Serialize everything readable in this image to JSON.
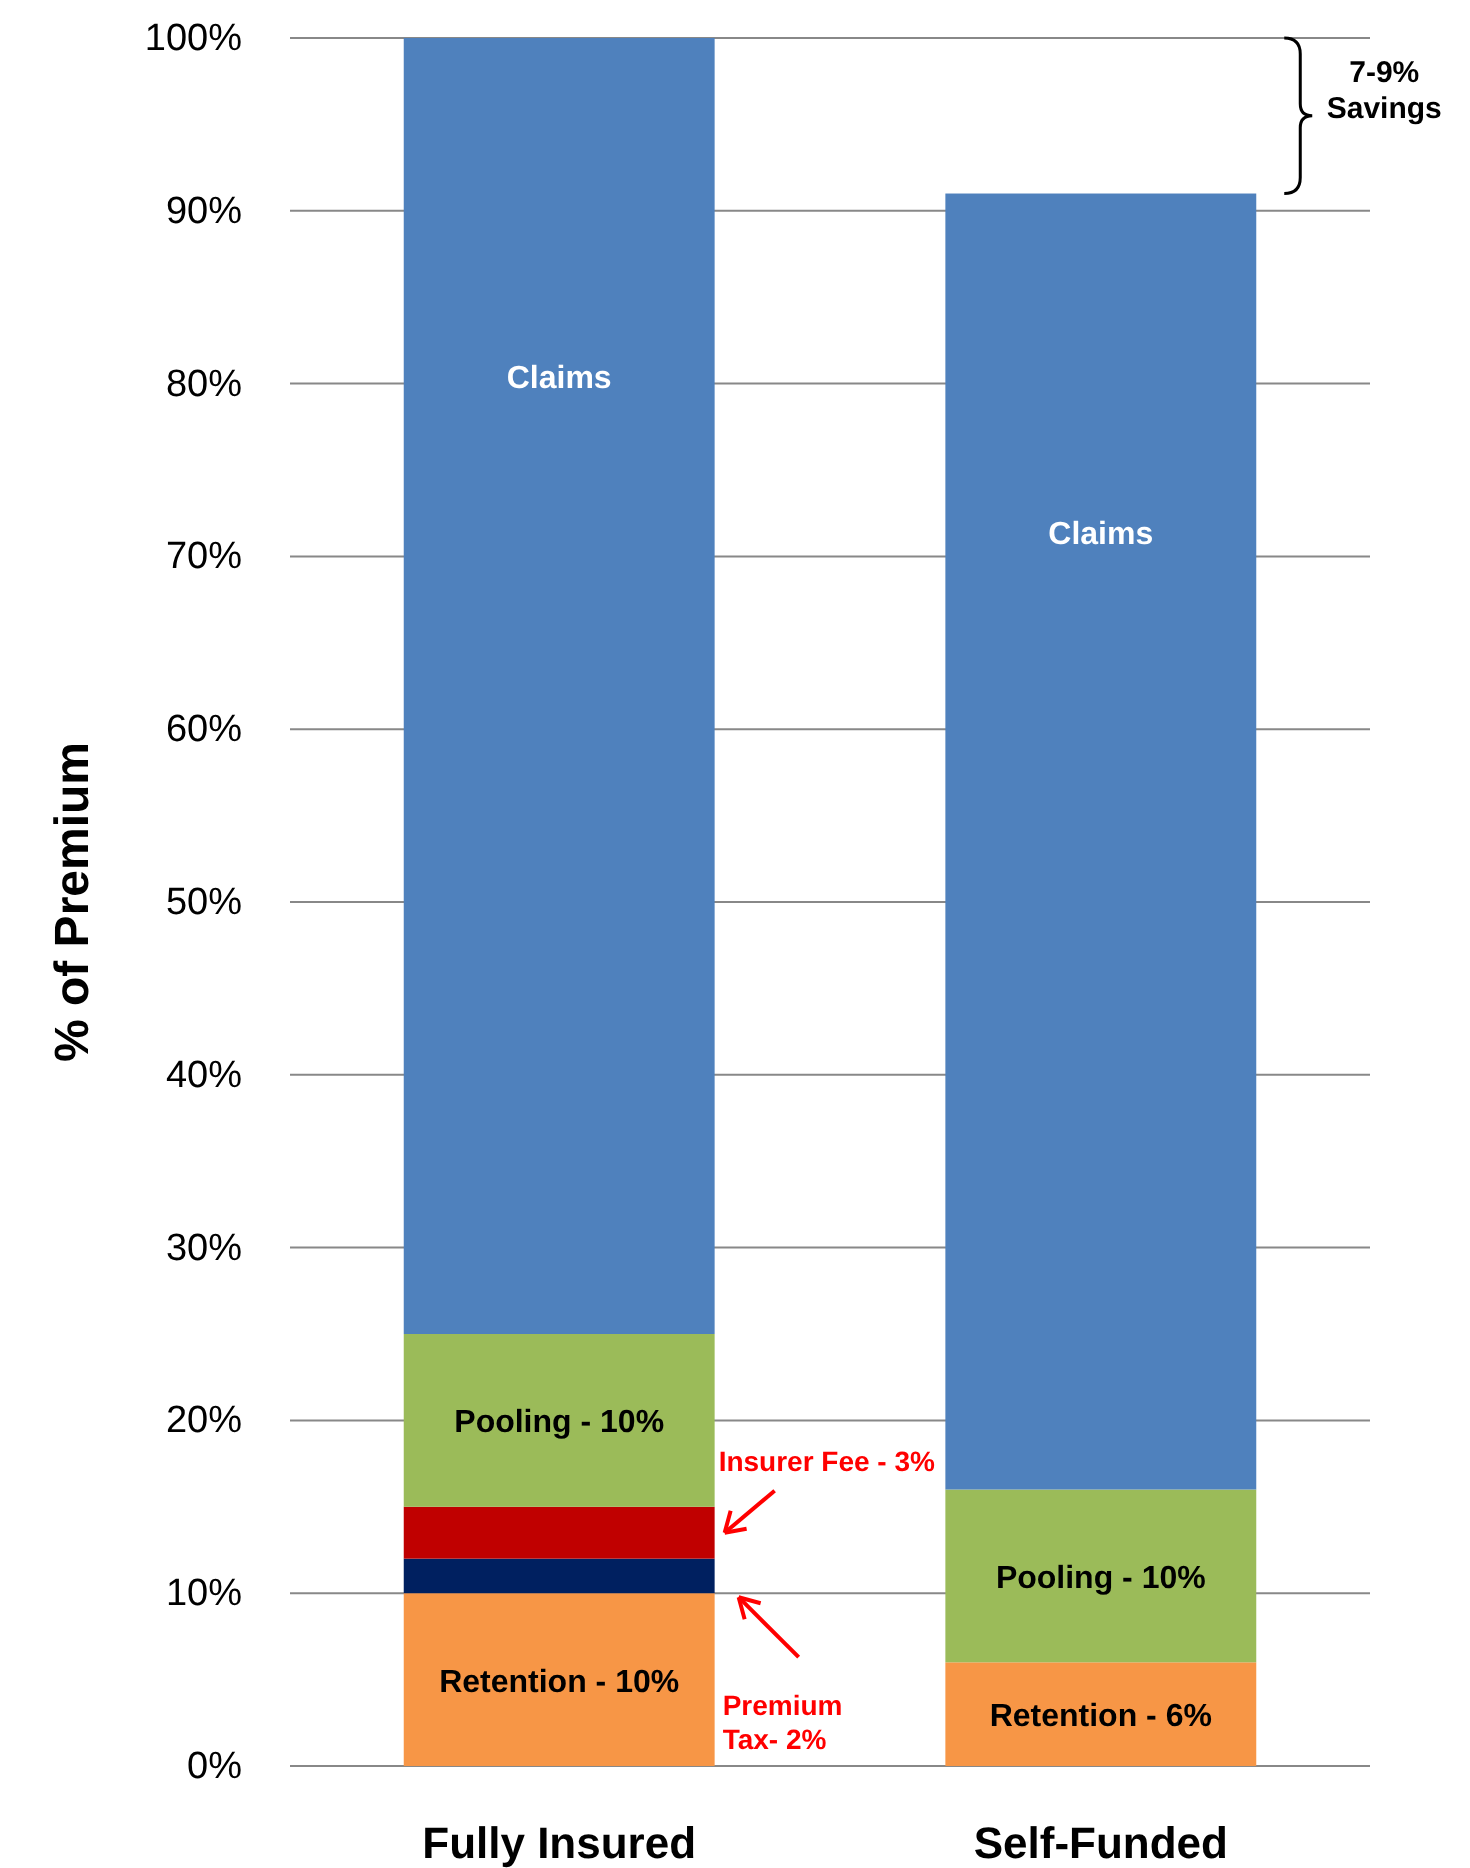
{
  "chart_data": {
    "type": "bar",
    "stacked": true,
    "ylabel": "% of Premium",
    "categories": [
      "Fully Insured",
      "Self-Funded"
    ],
    "series": [
      {
        "color": "#f79646",
        "values": [
          10,
          6
        ]
      },
      {
        "color": "#002060",
        "values": [
          2,
          null
        ]
      },
      {
        "color": "#c00000",
        "values": [
          3,
          null
        ]
      },
      {
        "color": "#9bbb59",
        "values": [
          10,
          10
        ]
      },
      {
        "color": "#4f81bd",
        "values": [
          75,
          75
        ]
      }
    ],
    "ylim": [
      0,
      100
    ],
    "yticks": [
      {
        "value": 0,
        "label": "0%"
      },
      {
        "value": 10,
        "label": "10%"
      },
      {
        "value": 20,
        "label": "20%"
      },
      {
        "value": 30,
        "label": "30%"
      },
      {
        "value": 40,
        "label": "40%"
      },
      {
        "value": 50,
        "label": "50%"
      },
      {
        "value": 60,
        "label": "60%"
      },
      {
        "value": 70,
        "label": "70%"
      },
      {
        "value": 80,
        "label": "80%"
      },
      {
        "value": 90,
        "label": "90%"
      },
      {
        "value": 100,
        "label": "100%"
      }
    ],
    "grid": "y",
    "annotations": [
      "Insurer Fee - 3%",
      "Premium\nTax- 2%",
      "7-9%\nSavings",
      "Claims",
      "Claims",
      "Pooling - 10%",
      "Pooling - 10%",
      "Retention - 10%",
      "Retention - 6%"
    ]
  }
}
